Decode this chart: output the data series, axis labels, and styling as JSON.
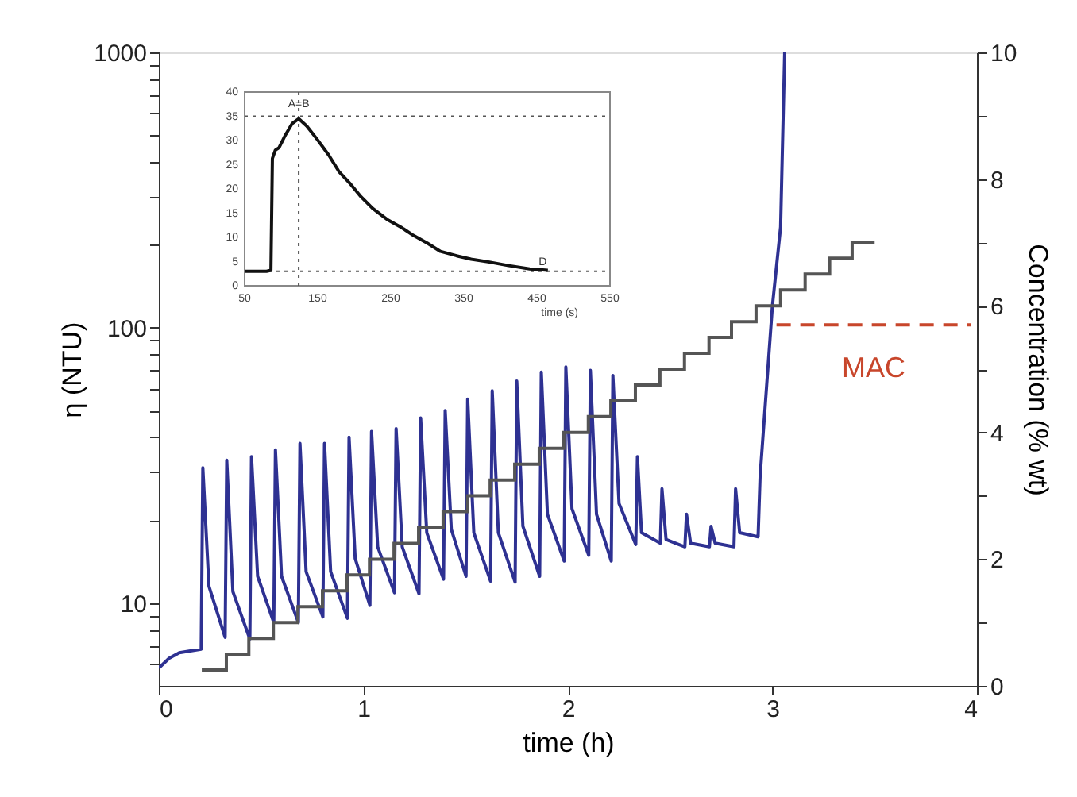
{
  "chart_data": [
    {
      "type": "line",
      "xlabel": "time (h)",
      "ylabel": "η (NTU)",
      "y2label": "Concentration (% wt)",
      "xlim": [
        0,
        4
      ],
      "xticks": [
        0,
        1,
        2,
        3,
        4
      ],
      "ylim": [
        5,
        1000
      ],
      "log": "y",
      "yticks": [
        {
          "value": 6,
          "label": null
        },
        {
          "value": 7,
          "label": null
        },
        {
          "value": 8,
          "label": null
        },
        {
          "value": 9,
          "label": null
        },
        10,
        {
          "value": 20,
          "label": null
        },
        {
          "value": 30,
          "label": null
        },
        {
          "value": 40,
          "label": null
        },
        {
          "value": 50,
          "label": null
        },
        {
          "value": 60,
          "label": null
        },
        {
          "value": 70,
          "label": null
        },
        {
          "value": 80,
          "label": null
        },
        {
          "value": 90,
          "label": null
        },
        100,
        {
          "value": 200,
          "label": null
        },
        {
          "value": 300,
          "label": null
        },
        {
          "value": 400,
          "label": null
        },
        {
          "value": 500,
          "label": null
        },
        {
          "value": 600,
          "label": null
        },
        {
          "value": 700,
          "label": null
        },
        {
          "value": 800,
          "label": null
        },
        {
          "value": 900,
          "label": null
        },
        1000
      ],
      "y2lim": [
        0,
        10
      ],
      "y2ticks": [
        0,
        {
          "value": 1,
          "label": null
        },
        2,
        {
          "value": 3,
          "label": null
        },
        4,
        {
          "value": 5,
          "label": null
        },
        6,
        {
          "value": 7,
          "label": null
        },
        8,
        {
          "value": 9,
          "label": null
        },
        10
      ],
      "grid": false,
      "series": [
        {
          "type": "line",
          "color": "#2e3192",
          "x": [
            0,
            0.05,
            0.1,
            0.207,
            0.215,
            0.245,
            0.324,
            0.332,
            0.362,
            0.445,
            0.453,
            0.483,
            0.562,
            0.57,
            0.6,
            0.682,
            0.69,
            0.72,
            0.802,
            0.81,
            0.84,
            0.922,
            0.93,
            0.96,
            1.032,
            1.04,
            1.07,
            1.152,
            1.16,
            1.19,
            1.272,
            1.28,
            1.31,
            1.392,
            1.4,
            1.43,
            1.502,
            1.51,
            1.54,
            1.622,
            1.63,
            1.66,
            1.742,
            1.75,
            1.78,
            1.862,
            1.87,
            1.9,
            1.982,
            1.99,
            2.02,
            2.102,
            2.11,
            2.14,
            2.212,
            2.22,
            2.25,
            2.332,
            2.34,
            2.36,
            2.452,
            2.46,
            2.48,
            2.572,
            2.58,
            2.6,
            2.692,
            2.7,
            2.72,
            2.812,
            2.82,
            2.84,
            2.93,
            2.94,
            3.0,
            3.04,
            3.06
          ],
          "values": [
            5.8,
            6.3,
            6.6,
            6.8,
            31,
            11.5,
            7.5,
            33,
            11,
            7.4,
            34,
            12.5,
            8.5,
            36,
            12.5,
            8.5,
            38,
            13,
            8.9,
            38,
            13,
            8.8,
            40,
            14.5,
            9.8,
            42,
            16,
            10.9,
            43,
            16,
            10.8,
            47,
            18,
            12.2,
            50,
            18.5,
            12.5,
            55,
            18,
            12,
            59,
            18,
            11.9,
            64,
            19,
            12.5,
            69,
            21,
            14.2,
            72,
            22,
            14.9,
            70,
            21,
            14.2,
            67,
            23,
            16.3,
            34,
            18,
            16.5,
            26,
            17,
            16,
            21,
            16.5,
            16,
            19,
            16.5,
            16,
            26,
            18,
            17.4,
            29,
            120,
            232,
            1000
          ]
        },
        {
          "type": "step",
          "color": "#555555",
          "axis": "y2",
          "x": [
            0.21,
            0.33,
            0.44,
            0.56,
            0.68,
            0.8,
            0.92,
            1.03,
            1.15,
            1.27,
            1.39,
            1.51,
            1.62,
            1.74,
            1.86,
            1.98,
            2.1,
            2.21,
            2.33,
            2.45,
            2.57,
            2.69,
            2.8,
            2.92,
            3.04,
            3.16,
            3.28,
            3.39,
            3.5
          ],
          "values": [
            0.25,
            0.5,
            0.75,
            1,
            1.25,
            1.5,
            1.75,
            2,
            2.25,
            2.5,
            2.75,
            3,
            3.25,
            3.5,
            3.75,
            4,
            4.25,
            4.5,
            4.75,
            5,
            5.25,
            5.5,
            5.75,
            6,
            6.25,
            6.5,
            6.75,
            7,
            7
          ]
        },
        {
          "type": "line",
          "name": "MAC",
          "color": "#c8462b",
          "axis": "y2",
          "line_style": "dashed",
          "x": [
            3.02,
            3.97
          ],
          "values": [
            5.7,
            5.7
          ]
        }
      ]
    },
    {
      "type": "line",
      "xlabel": "time (s)",
      "xlim": [
        50,
        550
      ],
      "xticks": [
        50,
        150,
        250,
        350,
        450,
        550
      ],
      "ylim": [
        0,
        40
      ],
      "yticks": [
        0,
        5,
        10,
        15,
        20,
        25,
        30,
        35,
        40
      ],
      "series": [
        {
          "color": "#111111",
          "x": [
            50,
            60,
            70,
            80,
            86,
            88,
            92,
            97,
            106,
            115,
            124,
            135,
            150,
            165,
            179,
            195,
            208,
            225,
            245,
            265,
            281,
            300,
            318,
            340,
            360,
            385,
            410,
            440,
            465
          ],
          "values": [
            3,
            3,
            3,
            3,
            3.2,
            26.3,
            28,
            28.5,
            31.2,
            33.5,
            34.5,
            33,
            30.1,
            27,
            23.6,
            21,
            18.6,
            16,
            13.7,
            12,
            10.4,
            8.8,
            7.1,
            6.2,
            5.5,
            4.9,
            4.2,
            3.5,
            3.2
          ]
        }
      ],
      "ref_lines": [
        {
          "axis": "y",
          "value": 35,
          "line_style": "dotted"
        },
        {
          "axis": "x",
          "value": 124,
          "line_style": "dotted"
        },
        {
          "axis": "y",
          "value": 3,
          "line_style": "dotted"
        }
      ],
      "annotations": [
        {
          "text": "A=B",
          "x": 124,
          "y": 37.5
        },
        {
          "text": "D",
          "x": 458,
          "y": 5
        }
      ]
    }
  ]
}
